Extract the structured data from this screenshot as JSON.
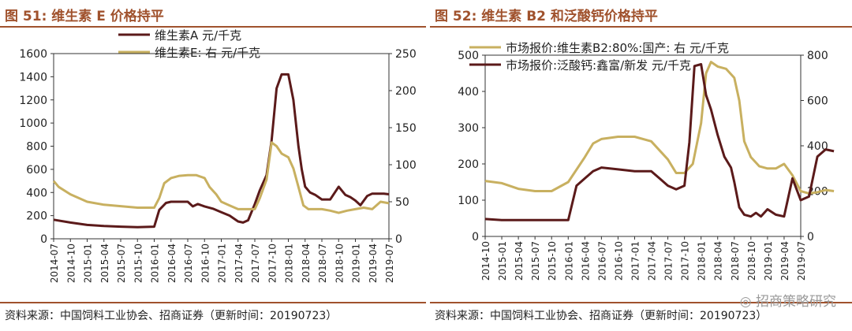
{
  "panels": [
    {
      "title": "图 51:  维生素 E 价格持平",
      "source": "资料来源：中国饲料工业协会、招商证券（更新时间：20190723）"
    },
    {
      "title": "图 52:  维生素 B2 和泛酸钙价格持平",
      "source": "资料来源：中国饲料工业协会、招商证券（更新时间：20190723）",
      "watermark": "招商策略研究"
    }
  ],
  "chart_data": [
    {
      "type": "line",
      "title": "图 51:  维生素 E 价格持平",
      "x_tick_labels": [
        "2014-07",
        "2014-10",
        "2015-01",
        "2015-04",
        "2015-07",
        "2015-10",
        "2016-01",
        "2016-04",
        "2016-07",
        "2016-10",
        "2017-01",
        "2017-04",
        "2017-07",
        "2017-10",
        "2018-01",
        "2018-04",
        "2018-07",
        "2018-10",
        "2019-01",
        "2019-04",
        "2019-07"
      ],
      "y_left": {
        "ticks": [
          "0",
          "200",
          "400",
          "600",
          "800",
          "1000",
          "1200",
          "1400",
          "1600"
        ],
        "range": [
          0,
          1600
        ]
      },
      "y_right": {
        "ticks": [
          "0",
          "50",
          "100",
          "150",
          "200",
          "250"
        ],
        "range": [
          0,
          250
        ]
      },
      "legend_position": "top-center",
      "series": [
        {
          "name": "维生素A 元/千克",
          "axis": "left",
          "color": "#5b1a1a",
          "x": [
            0,
            1,
            2,
            3,
            4,
            5,
            6,
            6.3,
            6.7,
            7,
            7.5,
            8,
            8.3,
            8.6,
            9,
            9.5,
            10,
            10.5,
            11,
            11.3,
            11.6,
            12,
            12.3,
            12.7,
            13,
            13.3,
            13.6,
            14,
            14.3,
            14.6,
            14.8,
            15,
            15.3,
            15.6,
            16,
            16.5,
            17,
            17.4,
            17.7,
            18,
            18.3,
            18.7,
            19,
            19.3,
            19.7,
            20
          ],
          "y": [
            165,
            140,
            120,
            110,
            105,
            100,
            105,
            250,
            310,
            320,
            320,
            320,
            280,
            300,
            280,
            260,
            230,
            200,
            150,
            140,
            160,
            300,
            420,
            550,
            850,
            1300,
            1420,
            1420,
            1200,
            800,
            600,
            450,
            400,
            380,
            340,
            340,
            450,
            380,
            360,
            330,
            290,
            370,
            390,
            390,
            390,
            385
          ]
        },
        {
          "name": "维生素E:  右 元/千克",
          "axis": "right",
          "color": "#c8b060",
          "x": [
            0,
            0.3,
            1,
            2,
            3,
            4,
            5,
            6,
            6.3,
            6.6,
            7,
            7.5,
            8,
            8.5,
            9,
            9.3,
            9.7,
            10,
            10.5,
            11,
            11.5,
            12,
            12.3,
            12.7,
            13,
            13.3,
            13.6,
            14,
            14.3,
            14.6,
            14.9,
            15.2,
            15.6,
            16,
            16.5,
            17,
            17.5,
            18,
            18.5,
            19,
            19.5,
            20
          ],
          "y": [
            78,
            70,
            60,
            50,
            46,
            44,
            42,
            42,
            55,
            75,
            82,
            85,
            86,
            86,
            82,
            70,
            60,
            50,
            45,
            40,
            40,
            40,
            55,
            80,
            130,
            125,
            115,
            110,
            95,
            70,
            45,
            40,
            40,
            40,
            38,
            35,
            38,
            40,
            42,
            40,
            50,
            48
          ]
        }
      ]
    },
    {
      "type": "line",
      "title": "图 52:  维生素 B2 和泛酸钙价格持平",
      "x_tick_labels": [
        "2014-10",
        "2015-01",
        "2015-04",
        "2015-07",
        "2015-10",
        "2016-01",
        "2016-04",
        "2016-07",
        "2016-10",
        "2017-01",
        "2017-04",
        "2017-07",
        "2017-10",
        "2018-01",
        "2018-04",
        "2018-07",
        "2018-10",
        "2019-01",
        "2019-04",
        "2019-07"
      ],
      "y_left": {
        "ticks": [
          "0",
          "100",
          "200",
          "300",
          "400",
          "500"
        ],
        "range": [
          0,
          500
        ]
      },
      "y_right": {
        "ticks": [
          "0",
          "200",
          "400",
          "600",
          "800"
        ],
        "range": [
          0,
          800
        ]
      },
      "legend_position": "top-center",
      "series": [
        {
          "name": "市场报价:维生素B2:80%:国产:  右 元/千克",
          "axis": "right",
          "color": "#c8b060",
          "x": [
            -1,
            0,
            1,
            2,
            3,
            4,
            5,
            5.5,
            6,
            7,
            8,
            9,
            10,
            10.5,
            11,
            11.5,
            12,
            12.3,
            12.6,
            13,
            13.5,
            14,
            14.3,
            14.6,
            15,
            15.5,
            16,
            16.5,
            17,
            17.5,
            18,
            18.5,
            19,
            19.5,
            20
          ],
          "y": [
            245,
            235,
            210,
            200,
            200,
            240,
            350,
            410,
            430,
            440,
            440,
            420,
            340,
            280,
            280,
            320,
            500,
            720,
            770,
            750,
            740,
            700,
            600,
            420,
            350,
            310,
            300,
            300,
            320,
            270,
            200,
            190,
            195,
            205,
            200
          ]
        },
        {
          "name": "市场报价:泛酸钙:鑫富/新发 元/千克",
          "axis": "left",
          "color": "#5b1a1a",
          "x": [
            -1,
            0,
            1,
            2,
            3,
            3.5,
            4,
            4.5,
            5,
            5.5,
            6,
            7,
            8,
            9,
            9.5,
            10,
            10.5,
            11,
            11.3,
            11.6,
            12,
            12.3,
            12.6,
            13,
            13.4,
            13.8,
            14,
            14.3,
            14.6,
            15,
            15.3,
            15.6,
            16,
            16.5,
            17,
            17.5,
            18,
            18.5,
            19,
            19.5,
            20
          ],
          "y": [
            48,
            45,
            45,
            45,
            45,
            45,
            45,
            140,
            160,
            180,
            190,
            185,
            180,
            180,
            160,
            140,
            130,
            140,
            260,
            470,
            475,
            390,
            350,
            280,
            220,
            190,
            150,
            80,
            60,
            55,
            65,
            55,
            75,
            60,
            55,
            160,
            100,
            110,
            220,
            240,
            235
          ]
        }
      ]
    }
  ]
}
